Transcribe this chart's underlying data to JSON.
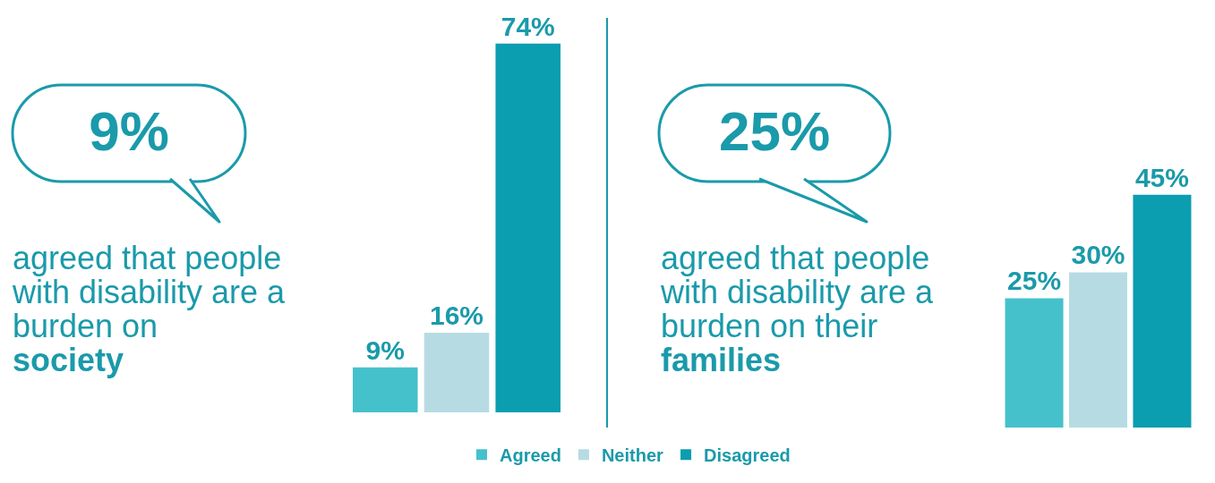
{
  "chart_data": [
    {
      "type": "bar",
      "categories": [
        null
      ],
      "tick_labels": false,
      "grid": false,
      "legend": "bottom",
      "annotations": [
        "9%",
        "agreed that people with disability are a burden on",
        "society"
      ],
      "series": [
        {
          "name": "Agreed",
          "color": "#45c1cc",
          "values": [
            9
          ],
          "value_labels": [
            "9%"
          ]
        },
        {
          "name": "Neither",
          "color": "#b7dbe3",
          "values": [
            16
          ],
          "value_labels": [
            "16%"
          ]
        },
        {
          "name": "Disagreed",
          "color": "#0b9db0",
          "values": [
            74
          ],
          "value_labels": [
            "74%"
          ]
        }
      ]
    },
    {
      "type": "bar",
      "categories": [
        null
      ],
      "tick_labels": false,
      "grid": false,
      "legend": false,
      "annotations": [
        "25%",
        "agreed that people with disability are a burden on their",
        "families"
      ],
      "series": [
        {
          "color": "#45c1cc",
          "values": [
            25
          ],
          "value_labels": [
            "25%"
          ]
        },
        {
          "color": "#b7dbe3",
          "values": [
            30
          ],
          "value_labels": [
            "30%"
          ]
        },
        {
          "color": "#0b9db0",
          "values": [
            45
          ],
          "value_labels": [
            "45%"
          ]
        }
      ]
    }
  ]
}
